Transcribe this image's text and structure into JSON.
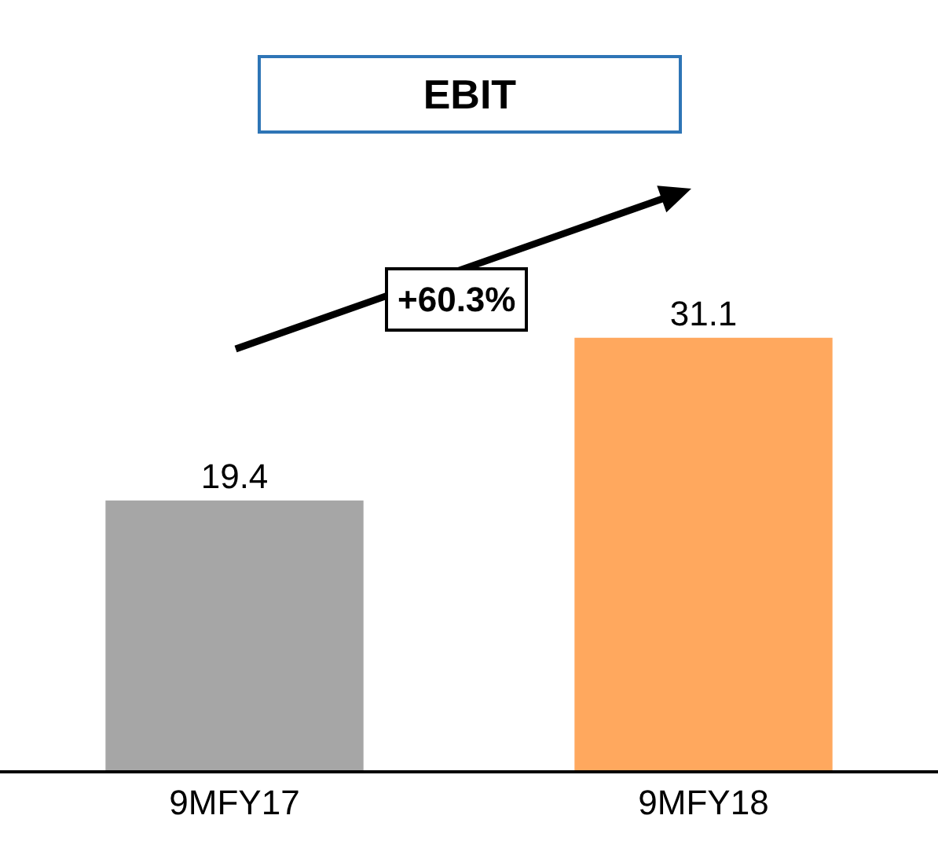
{
  "chart_data": {
    "type": "bar",
    "title": "EBIT",
    "categories": [
      "9MFY17",
      "9MFY18"
    ],
    "values": [
      19.4,
      31.1
    ],
    "colors": [
      "#a6a6a6",
      "#ffa85e"
    ],
    "data_labels": true,
    "legend": false,
    "annotations": [
      "+60.3%"
    ]
  }
}
